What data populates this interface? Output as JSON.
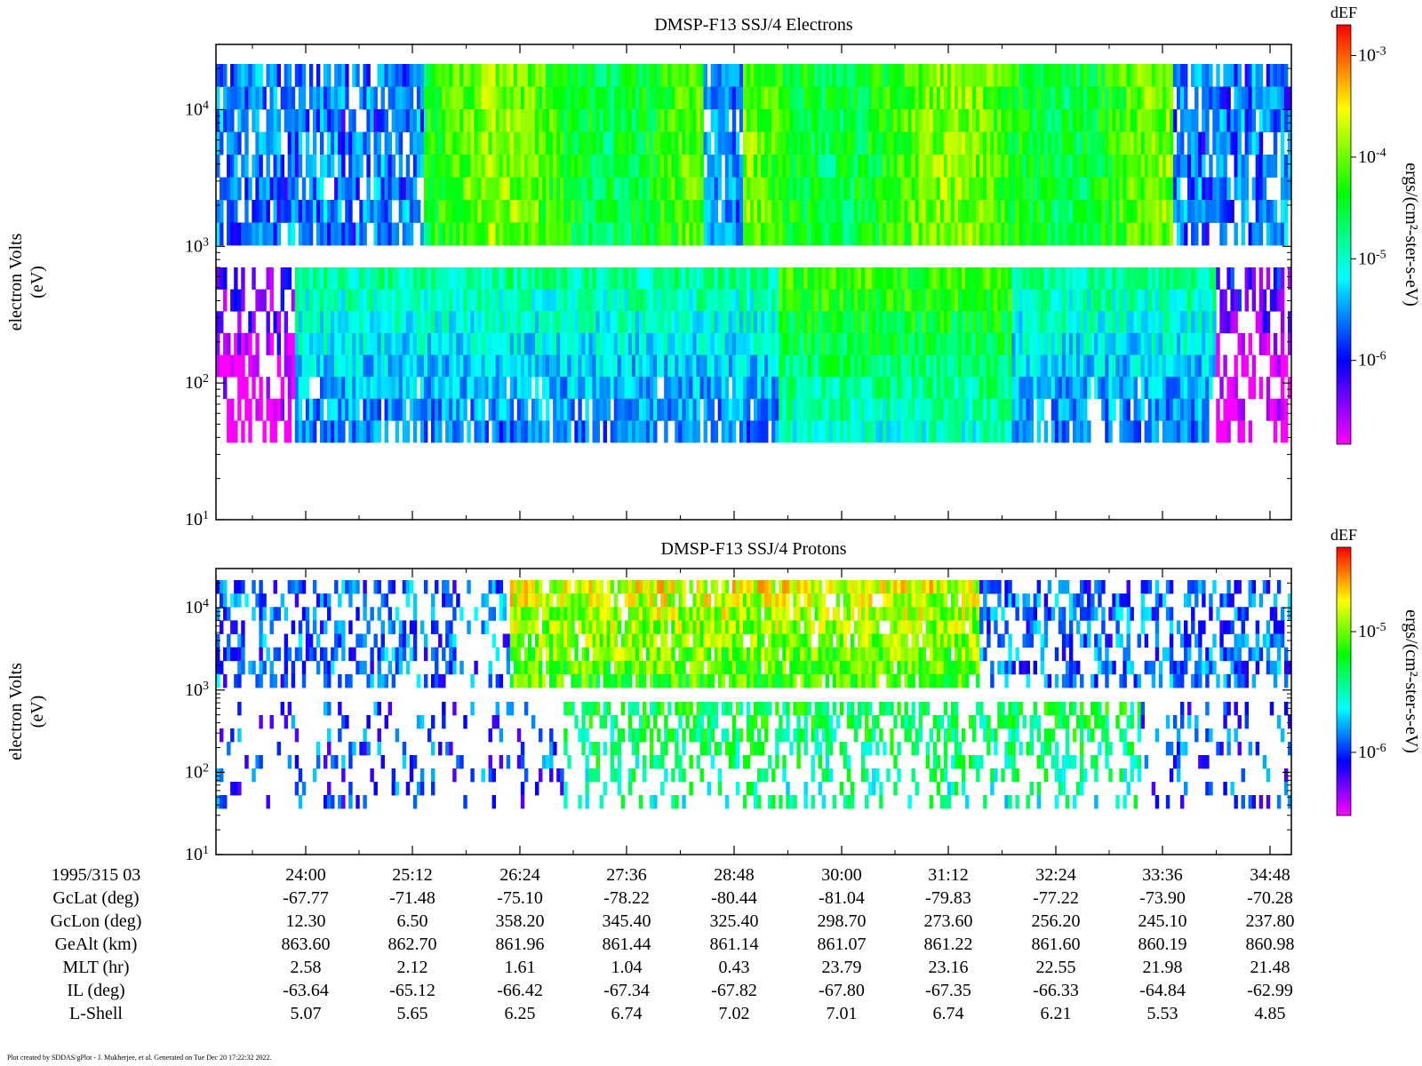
{
  "panels": [
    {
      "title": "DMSP-F13 SSJ/4 Electrons",
      "ylabel": "electron Volts",
      "yunit": "(eV)",
      "y_ticks": [
        {
          "value": 10,
          "base": "10",
          "exp": "1"
        },
        {
          "value": 100,
          "base": "10",
          "exp": "2"
        },
        {
          "value": 1000,
          "base": "10",
          "exp": "3"
        },
        {
          "value": 10000,
          "base": "10",
          "exp": "4"
        }
      ],
      "colorbar": {
        "header": "dEF",
        "label": "ergs/(cm²-ster-s-eV)",
        "ticks": [
          {
            "value": 1e-06,
            "base": "10",
            "exp": "-6"
          },
          {
            "value": 1e-05,
            "base": "10",
            "exp": "-5"
          },
          {
            "value": 0.0001,
            "base": "10",
            "exp": "-4"
          },
          {
            "value": 0.001,
            "base": "10",
            "exp": "-3"
          }
        ]
      }
    },
    {
      "title": "DMSP-F13 SSJ/4 Protons",
      "ylabel": "electron Volts",
      "yunit": "(eV)",
      "y_ticks": [
        {
          "value": 10,
          "base": "10",
          "exp": "1"
        },
        {
          "value": 100,
          "base": "10",
          "exp": "2"
        },
        {
          "value": 1000,
          "base": "10",
          "exp": "3"
        },
        {
          "value": 10000,
          "base": "10",
          "exp": "4"
        }
      ],
      "colorbar": {
        "header": "dEF",
        "label": "ergs/(cm²-ster-s-eV)",
        "ticks": [
          {
            "value": 1e-06,
            "base": "10",
            "exp": "-6"
          },
          {
            "value": 1e-05,
            "base": "10",
            "exp": "-5"
          }
        ]
      }
    }
  ],
  "chart_data": [
    {
      "type": "heatmap",
      "title": "DMSP-F13 SSJ/4 Electrons",
      "ylabel": "electron Volts (eV)",
      "yscale": "log",
      "ylim": [
        10,
        30000
      ],
      "x_tick_labels": [
        "24:00",
        "25:12",
        "26:24",
        "27:36",
        "28:48",
        "30:00",
        "31:12",
        "32:24",
        "33:36",
        "34:48"
      ],
      "colorbar": {
        "label": "dEF ergs/(cm²-ster-s-eV)",
        "scale": "log",
        "range": [
          1.5e-07,
          0.002
        ]
      }
    },
    {
      "type": "heatmap",
      "title": "DMSP-F13 SSJ/4 Protons",
      "ylabel": "electron Volts (eV)",
      "yscale": "log",
      "ylim": [
        10,
        30000
      ],
      "x_tick_labels": [
        "24:00",
        "25:12",
        "26:24",
        "27:36",
        "28:48",
        "30:00",
        "31:12",
        "32:24",
        "33:36",
        "34:48"
      ],
      "colorbar": {
        "label": "dEF ergs/(cm²-ster-s-eV)",
        "scale": "log",
        "range": [
          3e-07,
          5e-05
        ]
      }
    }
  ],
  "ephemeris": {
    "rows": [
      {
        "label": "1995/315 03",
        "values": [
          "24:00",
          "25:12",
          "26:24",
          "27:36",
          "28:48",
          "30:00",
          "31:12",
          "32:24",
          "33:36",
          "34:48"
        ]
      },
      {
        "label": "GcLat (deg)",
        "values": [
          "-67.77",
          "-71.48",
          "-75.10",
          "-78.22",
          "-80.44",
          "-81.04",
          "-79.83",
          "-77.22",
          "-73.90",
          "-70.28"
        ]
      },
      {
        "label": "GcLon (deg)",
        "values": [
          "12.30",
          "6.50",
          "358.20",
          "345.40",
          "325.40",
          "298.70",
          "273.60",
          "256.20",
          "245.10",
          "237.80"
        ]
      },
      {
        "label": "GeAlt (km)",
        "values": [
          "863.60",
          "862.70",
          "861.96",
          "861.44",
          "861.14",
          "861.07",
          "861.22",
          "861.60",
          "860.19",
          "860.98"
        ]
      },
      {
        "label": "MLT (hr)",
        "values": [
          "2.58",
          "2.12",
          "1.61",
          "1.04",
          "0.43",
          "23.79",
          "23.16",
          "22.55",
          "21.98",
          "21.48"
        ]
      },
      {
        "label": "IL (deg)",
        "values": [
          "-63.64",
          "-65.12",
          "-66.42",
          "-67.34",
          "-67.82",
          "-67.80",
          "-67.35",
          "-66.33",
          "-64.84",
          "-62.99"
        ]
      },
      {
        "label": "L-Shell",
        "values": [
          "5.07",
          "5.65",
          "6.25",
          "6.74",
          "7.02",
          "7.01",
          "6.74",
          "6.21",
          "5.53",
          "4.85"
        ]
      }
    ]
  },
  "footer": "Plot created by SDDAS/gPlot - J. Mukherjee, et al.  Generated on Tue Dec 20 17:22:32 2022."
}
